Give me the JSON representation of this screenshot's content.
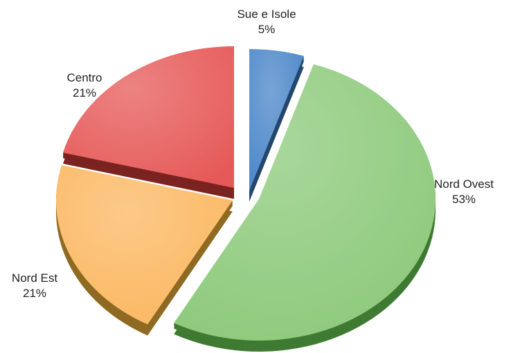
{
  "chart_data": {
    "type": "pie",
    "style": "3d-exploded",
    "slices": [
      {
        "name": "Sue e Isole",
        "value": 5,
        "label": "5%",
        "color": "#4A86C8",
        "side_color": "#24476E"
      },
      {
        "name": "Nord Ovest",
        "value": 53,
        "label": "53%",
        "color": "#8CC97A",
        "side_color": "#3F7A32"
      },
      {
        "name": "Nord Est",
        "value": 21,
        "label": "21%",
        "color": "#FBB760",
        "side_color": "#8F6A23"
      },
      {
        "name": "Centro",
        "value": 21,
        "label": "21%",
        "color": "#E55A58",
        "side_color": "#7A2321"
      }
    ]
  }
}
